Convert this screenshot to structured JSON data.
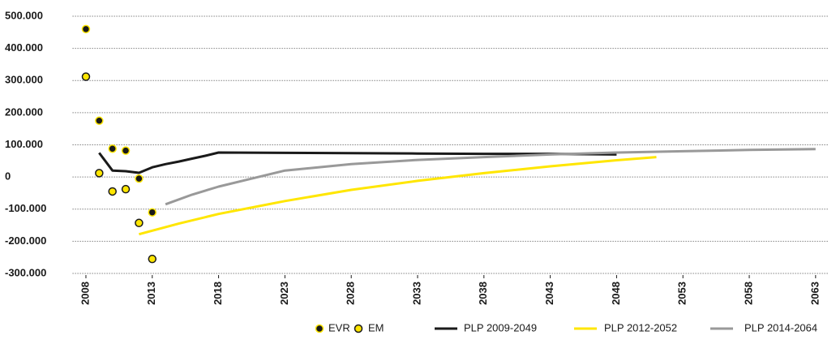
{
  "chart_data": {
    "type": "line",
    "xlim": [
      2007,
      2064
    ],
    "xticks": [
      2008,
      2013,
      2018,
      2023,
      2028,
      2033,
      2038,
      2043,
      2048,
      2053,
      2058,
      2063
    ],
    "ylim": [
      -300000,
      500000
    ],
    "yticks": [
      {
        "value": 500000,
        "label": "500.000"
      },
      {
        "value": 400000,
        "label": "400.000"
      },
      {
        "value": 300000,
        "label": "300.000"
      },
      {
        "value": 200000,
        "label": "200.000"
      },
      {
        "value": 100000,
        "label": "100.000"
      },
      0,
      {
        "value": -100000,
        "label": "-100.000"
      },
      {
        "value": -200000,
        "label": "-200.000"
      },
      {
        "value": -300000,
        "label": "-300.000"
      }
    ],
    "grid": true,
    "series": [
      {
        "name": "EVR",
        "type": "scatter",
        "color": "#1a1a1a",
        "edge": "#ffe600",
        "x": [
          2008,
          2009,
          2010,
          2011,
          2012,
          2013
        ],
        "values": [
          460000,
          175000,
          88000,
          82000,
          -5000,
          -110000
        ]
      },
      {
        "name": "EM",
        "type": "scatter",
        "color": "#ffe600",
        "edge": "#1a1a1a",
        "x": [
          2008,
          2009,
          2010,
          2011,
          2012,
          2013
        ],
        "values": [
          312000,
          12000,
          -45000,
          -38000,
          -143000,
          -255000
        ]
      },
      {
        "name": "PLP 2009-2049",
        "type": "line",
        "color": "#1a1a1a",
        "x": [
          2009,
          2010,
          2011,
          2012,
          2013,
          2014,
          2015,
          2016,
          2017,
          2018,
          2023,
          2028,
          2033,
          2038,
          2043,
          2048
        ],
        "values": [
          75000,
          20000,
          18000,
          13000,
          30000,
          40000,
          48000,
          57000,
          66000,
          76000,
          75000,
          74000,
          73000,
          72000,
          72000,
          70000
        ]
      },
      {
        "name": "PLP 2012-2052",
        "type": "line",
        "color": "#ffe600",
        "x": [
          2012,
          2015,
          2018,
          2023,
          2028,
          2033,
          2038,
          2043,
          2048,
          2051
        ],
        "values": [
          -178000,
          -145000,
          -115000,
          -75000,
          -40000,
          -12000,
          12000,
          33000,
          52000,
          62000
        ]
      },
      {
        "name": "PLP 2014-2064",
        "type": "line",
        "color": "#999999",
        "x": [
          2014,
          2016,
          2018,
          2020,
          2023,
          2028,
          2033,
          2038,
          2043,
          2048,
          2053,
          2058,
          2063
        ],
        "values": [
          -85000,
          -55000,
          -30000,
          -10000,
          20000,
          40000,
          53000,
          62000,
          70000,
          76000,
          80000,
          84000,
          87000
        ]
      }
    ]
  }
}
